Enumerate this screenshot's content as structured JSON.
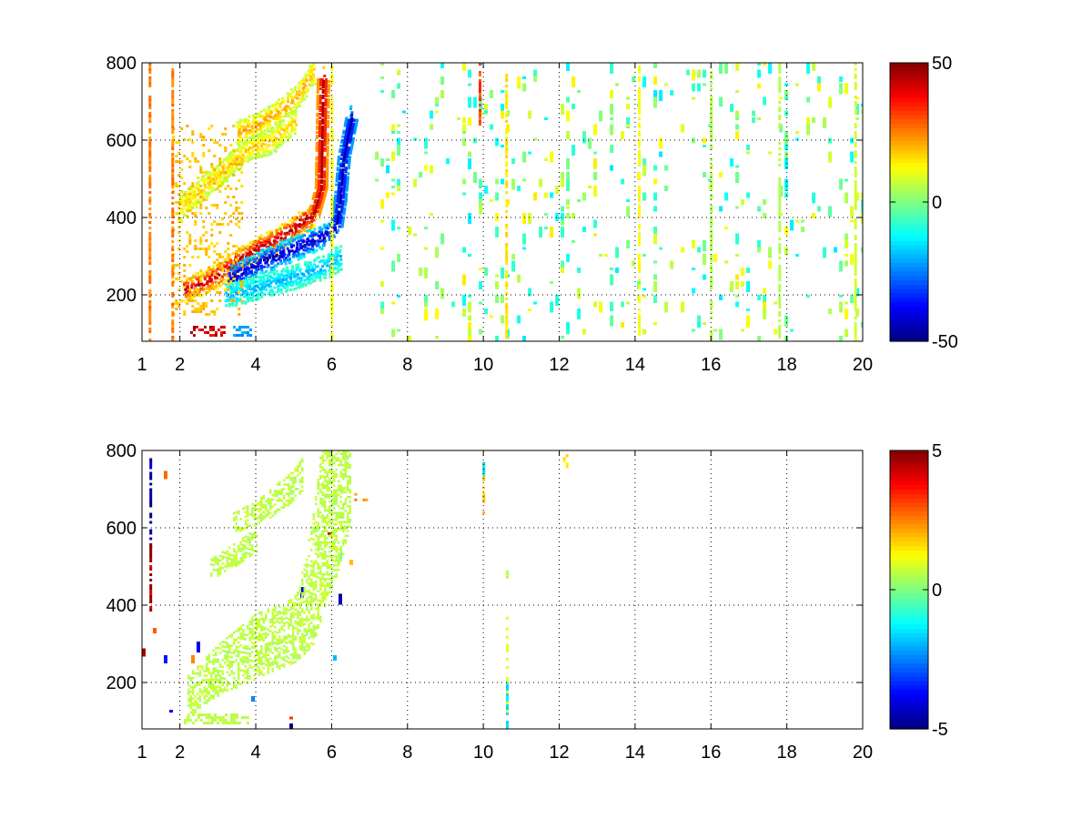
{
  "figure": {
    "background": "#ffffff",
    "colormap": "jet"
  },
  "chart_data": [
    {
      "type": "heatmap",
      "title": "",
      "xlabel": "",
      "ylabel": "",
      "xlim": [
        1,
        20
      ],
      "ylim": [
        80,
        800
      ],
      "xticks": [
        1,
        2,
        4,
        6,
        8,
        10,
        12,
        14,
        16,
        18,
        20
      ],
      "yticks": [
        200,
        400,
        600,
        800
      ],
      "grid": true,
      "colorbar": {
        "min": -50,
        "max": 50,
        "ticks": [
          -50,
          0,
          50
        ]
      },
      "features": [
        {
          "kind": "ridge",
          "value": 45,
          "points": [
            [
              2.1,
              215
            ],
            [
              2.6,
              235
            ],
            [
              3.0,
              255
            ],
            [
              3.5,
              290
            ],
            [
              4.0,
              320
            ],
            [
              4.5,
              345
            ],
            [
              5.0,
              375
            ],
            [
              5.5,
              410
            ],
            [
              5.7,
              480
            ],
            [
              5.72,
              600
            ],
            [
              5.75,
              760
            ]
          ]
        },
        {
          "kind": "ridge",
          "value": -45,
          "points": [
            [
              3.3,
              245
            ],
            [
              3.8,
              270
            ],
            [
              4.3,
              295
            ],
            [
              4.8,
              315
            ],
            [
              5.3,
              335
            ],
            [
              5.8,
              355
            ],
            [
              6.1,
              380
            ],
            [
              6.2,
              450
            ],
            [
              6.3,
              560
            ],
            [
              6.5,
              660
            ]
          ]
        },
        {
          "kind": "ridge",
          "value": 22,
          "points": [
            [
              3.5,
              620
            ],
            [
              4.0,
              640
            ],
            [
              4.5,
              670
            ],
            [
              5.0,
              710
            ],
            [
              5.3,
              745
            ],
            [
              5.5,
              780
            ]
          ]
        },
        {
          "kind": "ridge",
          "value": 18,
          "points": [
            [
              2.0,
              430
            ],
            [
              2.6,
              480
            ],
            [
              3.2,
              530
            ],
            [
              3.8,
              580
            ],
            [
              4.4,
              600
            ],
            [
              5.0,
              650
            ]
          ]
        },
        {
          "kind": "ridge",
          "value": -20,
          "points": [
            [
              3.2,
              200
            ],
            [
              3.8,
              215
            ],
            [
              4.5,
              235
            ],
            [
              5.2,
              255
            ],
            [
              5.9,
              280
            ],
            [
              6.2,
              300
            ]
          ]
        },
        {
          "kind": "patch",
          "value": 42,
          "x": [
            2.2,
            3.2
          ],
          "y": [
            95,
            120
          ]
        },
        {
          "kind": "patch",
          "value": -22,
          "x": [
            3.4,
            3.9
          ],
          "y": [
            95,
            120
          ]
        },
        {
          "kind": "patch",
          "value": 18,
          "x": [
            1.8,
            3.6
          ],
          "y": [
            150,
            640
          ]
        },
        {
          "kind": "line",
          "value": 15,
          "x": 10.6,
          "y": [
            80,
            800
          ]
        },
        {
          "kind": "line",
          "value": 30,
          "x": 9.9,
          "y": [
            620,
            800
          ]
        },
        {
          "kind": "line",
          "value": 12,
          "x": 14.1,
          "y": [
            80,
            800
          ]
        },
        {
          "kind": "line",
          "value": 5,
          "x": 16.0,
          "y": [
            80,
            800
          ]
        },
        {
          "kind": "line",
          "value": 5,
          "x": 17.8,
          "y": [
            80,
            800
          ]
        },
        {
          "kind": "line",
          "value": 8,
          "x": 19.8,
          "y": [
            80,
            800
          ]
        },
        {
          "kind": "line",
          "value": 25,
          "x": 1.2,
          "y": [
            80,
            800
          ]
        },
        {
          "kind": "line",
          "value": 25,
          "x": 1.8,
          "y": [
            80,
            800
          ]
        },
        {
          "kind": "line",
          "value": 12,
          "x": 6.0,
          "y": [
            80,
            800
          ]
        }
      ],
      "noise": {
        "value_range": [
          -15,
          15
        ],
        "x": [
          7.0,
          20
        ],
        "y": [
          80,
          800
        ],
        "density": 0.35
      }
    },
    {
      "type": "heatmap",
      "title": "",
      "xlabel": "",
      "ylabel": "",
      "xlim": [
        1,
        20
      ],
      "ylim": [
        80,
        800
      ],
      "xticks": [
        1,
        2,
        4,
        6,
        8,
        10,
        12,
        14,
        16,
        18,
        20
      ],
      "yticks": [
        200,
        400,
        600,
        800
      ],
      "grid": true,
      "colorbar": {
        "min": -5,
        "max": 5,
        "ticks": [
          -5,
          0,
          5
        ]
      },
      "features": [
        {
          "kind": "band",
          "value": 0.6,
          "lower": [
            [
              2.2,
              110
            ],
            [
              3.0,
              170
            ],
            [
              4.0,
              210
            ],
            [
              5.0,
              250
            ],
            [
              5.5,
              300
            ],
            [
              5.8,
              400
            ],
            [
              6.2,
              500
            ],
            [
              6.5,
              620
            ]
          ],
          "upper": [
            [
              2.2,
              220
            ],
            [
              3.0,
              300
            ],
            [
              4.0,
              380
            ],
            [
              5.0,
              420
            ],
            [
              5.3,
              520
            ],
            [
              5.5,
              650
            ],
            [
              5.7,
              800
            ]
          ]
        },
        {
          "kind": "band",
          "value": 0.6,
          "lower": [
            [
              3.4,
              590
            ],
            [
              4.0,
              610
            ],
            [
              4.6,
              640
            ],
            [
              5.2,
              690
            ]
          ],
          "upper": [
            [
              3.4,
              640
            ],
            [
              4.0,
              670
            ],
            [
              4.6,
              720
            ],
            [
              5.2,
              780
            ]
          ]
        },
        {
          "kind": "band",
          "value": 0.6,
          "lower": [
            [
              2.8,
              470
            ],
            [
              3.4,
              500
            ],
            [
              4.0,
              540
            ]
          ],
          "upper": [
            [
              2.8,
              520
            ],
            [
              3.4,
              560
            ],
            [
              4.0,
              600
            ]
          ]
        },
        {
          "kind": "patch",
          "value": 0.6,
          "x": [
            2.1,
            3.8
          ],
          "y": [
            95,
            120
          ]
        },
        {
          "kind": "line",
          "value": -4.8,
          "x": 1.22,
          "y": [
            550,
            780
          ]
        },
        {
          "kind": "line",
          "value": 4.6,
          "x": 1.22,
          "y": [
            390,
            560
          ]
        },
        {
          "kind": "line",
          "value": 1.0,
          "x": 10.62,
          "y": [
            80,
            370
          ]
        },
        {
          "kind": "line",
          "value": -1.5,
          "x": 10.62,
          "y": [
            80,
            200
          ]
        },
        {
          "kind": "line",
          "value": 0.5,
          "x": 10.62,
          "y": [
            470,
            490
          ]
        },
        {
          "kind": "line",
          "value": 1.8,
          "x": 10.0,
          "y": [
            640,
            770
          ]
        },
        {
          "kind": "line",
          "value": -1.5,
          "x": 10.0,
          "y": [
            740,
            770
          ]
        },
        {
          "kind": "patch",
          "value": 2.2,
          "x": [
            6.6,
            7.1
          ],
          "y": [
            670,
            690
          ]
        },
        {
          "kind": "patch",
          "value": 1.5,
          "x": [
            12.1,
            12.3
          ],
          "y": [
            760,
            790
          ]
        }
      ],
      "noise": {
        "value_range": [
          -5,
          5
        ],
        "x": [
          1.0,
          6.5
        ],
        "y": [
          80,
          800
        ],
        "density": 0.02
      }
    }
  ]
}
